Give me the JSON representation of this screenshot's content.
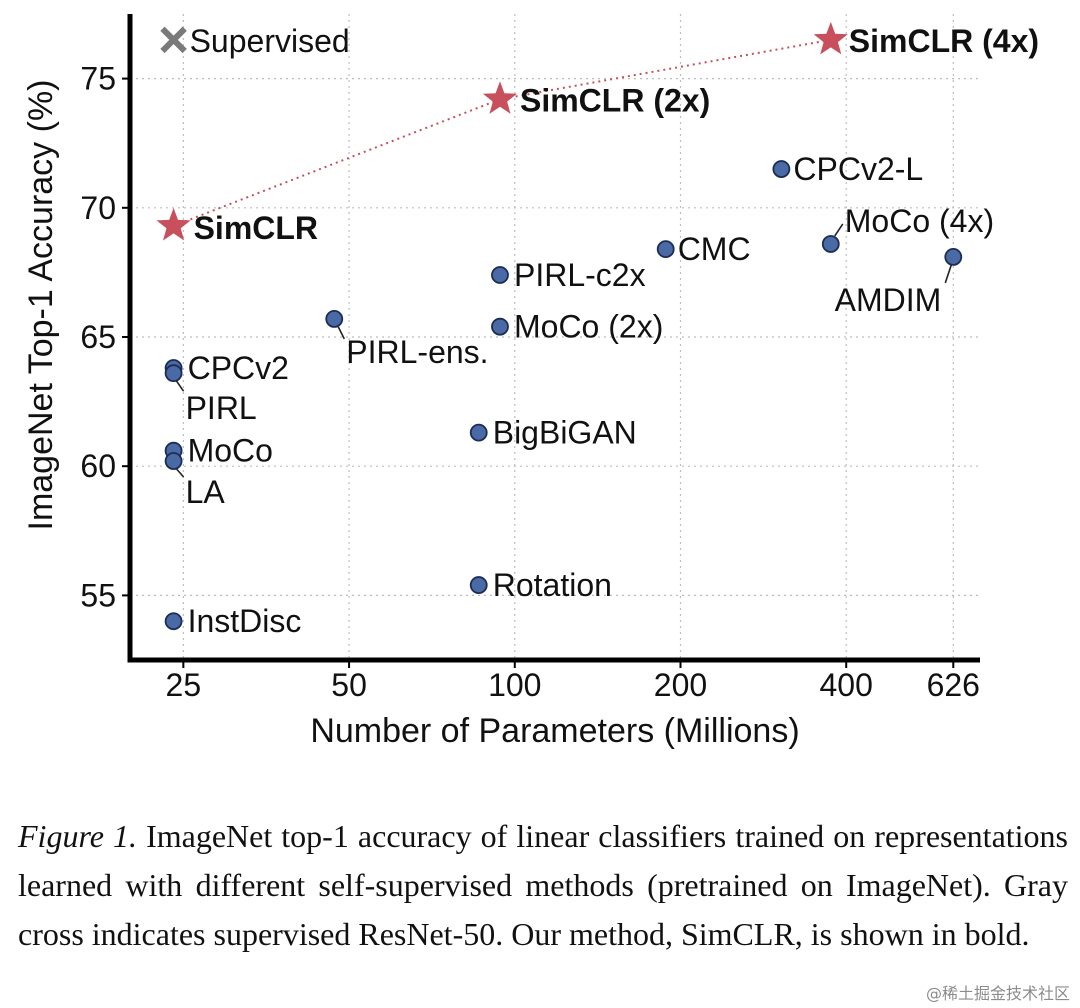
{
  "chart_data": {
    "type": "scatter",
    "title": "",
    "xlabel": "Number of Parameters (Millions)",
    "ylabel": "ImageNet Top-1 Accuracy (%)",
    "x_scale": "log",
    "xlim": [
      20,
      700
    ],
    "ylim": [
      52.5,
      77.5
    ],
    "x_ticks": [
      25,
      50,
      100,
      200,
      400,
      626
    ],
    "y_ticks": [
      55,
      60,
      65,
      70,
      75
    ],
    "grid": true,
    "series": [
      {
        "name": "Self-supervised methods",
        "marker": "circle",
        "color": "#4a6aa5",
        "points": [
          {
            "label": "CPCv2",
            "x": 24,
            "y": 63.8
          },
          {
            "label": "PIRL",
            "x": 24,
            "y": 63.6
          },
          {
            "label": "MoCo",
            "x": 24,
            "y": 60.6
          },
          {
            "label": "LA",
            "x": 24,
            "y": 60.2
          },
          {
            "label": "InstDisc",
            "x": 24,
            "y": 54.0
          },
          {
            "label": "PIRL-ens.",
            "x": 47,
            "y": 65.7
          },
          {
            "label": "PIRL-c2x",
            "x": 94,
            "y": 67.4
          },
          {
            "label": "MoCo (2x)",
            "x": 94,
            "y": 65.4
          },
          {
            "label": "BigBiGAN",
            "x": 86,
            "y": 61.3
          },
          {
            "label": "Rotation",
            "x": 86,
            "y": 55.4
          },
          {
            "label": "CMC",
            "x": 188,
            "y": 68.4
          },
          {
            "label": "CPCv2-L",
            "x": 305,
            "y": 71.5
          },
          {
            "label": "MoCo (4x)",
            "x": 375,
            "y": 68.6
          },
          {
            "label": "AMDIM",
            "x": 626,
            "y": 68.1
          }
        ]
      },
      {
        "name": "SimCLR",
        "marker": "star",
        "color": "#c8505c",
        "line": "dotted",
        "points": [
          {
            "label": "SimCLR",
            "x": 24,
            "y": 69.3
          },
          {
            "label": "SimCLR (2x)",
            "x": 94,
            "y": 74.2
          },
          {
            "label": "SimCLR (4x)",
            "x": 375,
            "y": 76.5
          }
        ]
      },
      {
        "name": "Supervised",
        "marker": "x",
        "color": "#7a7a7a",
        "legend_only": true,
        "points": [
          {
            "label": "Supervised",
            "x": 24,
            "y": 76.5
          }
        ]
      }
    ]
  },
  "caption": {
    "lead": "Figure 1.",
    "text": "ImageNet top-1 accuracy of linear classifiers trained on representations learned with different self-supervised methods (pretrained on ImageNet). Gray cross indicates supervised ResNet-50. Our method, SimCLR, is shown in bold."
  },
  "watermark": "@稀土掘金技术社区"
}
